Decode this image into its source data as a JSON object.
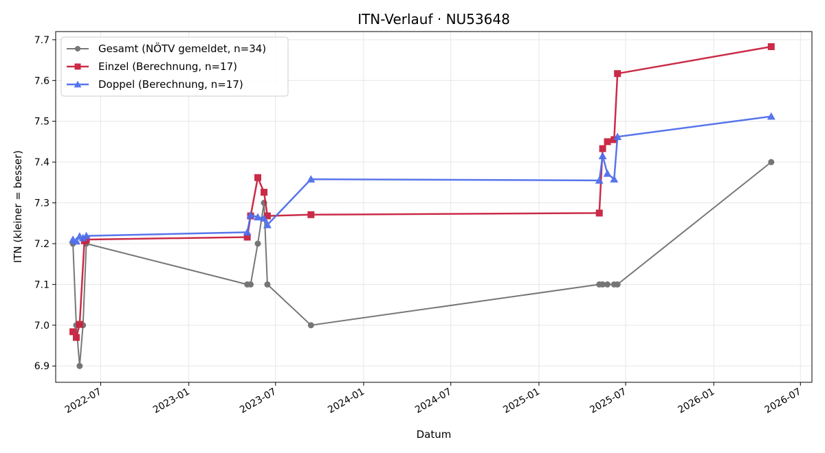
{
  "chart_data": {
    "type": "line",
    "title": "ITN-Verlauf · NU53648",
    "xlabel": "Datum",
    "ylabel": "ITN  (kleiner = besser)",
    "x_axis_type": "date",
    "xlim": [
      "2022-03-29",
      "2026-07-25"
    ],
    "ylim": [
      6.86,
      7.72
    ],
    "x_ticks": [
      "2022-07",
      "2023-01",
      "2023-07",
      "2024-01",
      "2024-07",
      "2025-01",
      "2025-07",
      "2026-01",
      "2026-07"
    ],
    "y_ticks": [
      6.9,
      7.0,
      7.1,
      7.2,
      7.3,
      7.4,
      7.5,
      7.6,
      7.7
    ],
    "grid": true,
    "legend_position": "top-left",
    "series": [
      {
        "name": "Gesamt (NÖTV gemeldet, n=34)",
        "color": "#555555",
        "marker": "circle",
        "points": [
          {
            "x": "2022-05-04",
            "y": 7.2
          },
          {
            "x": "2022-05-11",
            "y": 7.0
          },
          {
            "x": "2022-05-18",
            "y": 6.9
          },
          {
            "x": "2022-05-25",
            "y": 7.0
          },
          {
            "x": "2022-06-01",
            "y": 7.2
          },
          {
            "x": "2023-05-03",
            "y": 7.1
          },
          {
            "x": "2023-05-10",
            "y": 7.1
          },
          {
            "x": "2023-05-25",
            "y": 7.2
          },
          {
            "x": "2023-06-07",
            "y": 7.3
          },
          {
            "x": "2023-06-14",
            "y": 7.1
          },
          {
            "x": "2023-09-13",
            "y": 7.0
          },
          {
            "x": "2025-05-07",
            "y": 7.1
          },
          {
            "x": "2025-05-14",
            "y": 7.1
          },
          {
            "x": "2025-05-24",
            "y": 7.1
          },
          {
            "x": "2025-06-07",
            "y": 7.1
          },
          {
            "x": "2025-06-14",
            "y": 7.1
          },
          {
            "x": "2026-05-01",
            "y": 7.4
          }
        ]
      },
      {
        "name": "Einzel (Berechnung, n=17)",
        "color": "#c8203e",
        "marker": "square",
        "points": [
          {
            "x": "2022-05-04",
            "y": 6.984
          },
          {
            "x": "2022-05-11",
            "y": 6.97
          },
          {
            "x": "2022-05-18",
            "y": 7.002
          },
          {
            "x": "2022-05-28",
            "y": 7.207
          },
          {
            "x": "2022-06-01",
            "y": 7.21
          },
          {
            "x": "2023-05-03",
            "y": 7.216
          },
          {
            "x": "2023-05-10",
            "y": 7.268
          },
          {
            "x": "2023-05-25",
            "y": 7.362
          },
          {
            "x": "2023-06-07",
            "y": 7.326
          },
          {
            "x": "2023-06-14",
            "y": 7.268
          },
          {
            "x": "2023-09-13",
            "y": 7.271
          },
          {
            "x": "2025-05-07",
            "y": 7.275
          },
          {
            "x": "2025-05-14",
            "y": 7.433
          },
          {
            "x": "2025-05-24",
            "y": 7.45
          },
          {
            "x": "2025-06-07",
            "y": 7.455
          },
          {
            "x": "2025-06-14",
            "y": 7.617
          },
          {
            "x": "2026-05-01",
            "y": 7.683
          }
        ]
      },
      {
        "name": "Doppel (Berechnung, n=17)",
        "color": "#4f6eeb",
        "marker": "triangle",
        "points": [
          {
            "x": "2022-05-04",
            "y": 7.21
          },
          {
            "x": "2022-05-11",
            "y": 7.206
          },
          {
            "x": "2022-05-18",
            "y": 7.218
          },
          {
            "x": "2022-05-25",
            "y": 7.214
          },
          {
            "x": "2022-06-01",
            "y": 7.219
          },
          {
            "x": "2023-05-03",
            "y": 7.228
          },
          {
            "x": "2023-05-10",
            "y": 7.27
          },
          {
            "x": "2023-05-25",
            "y": 7.265
          },
          {
            "x": "2023-06-07",
            "y": 7.262
          },
          {
            "x": "2023-06-14",
            "y": 7.246
          },
          {
            "x": "2023-09-13",
            "y": 7.358
          },
          {
            "x": "2025-05-07",
            "y": 7.355
          },
          {
            "x": "2025-05-14",
            "y": 7.415
          },
          {
            "x": "2025-05-24",
            "y": 7.372
          },
          {
            "x": "2025-06-07",
            "y": 7.358
          },
          {
            "x": "2025-06-14",
            "y": 7.462
          },
          {
            "x": "2026-05-01",
            "y": 7.512
          }
        ]
      }
    ]
  }
}
